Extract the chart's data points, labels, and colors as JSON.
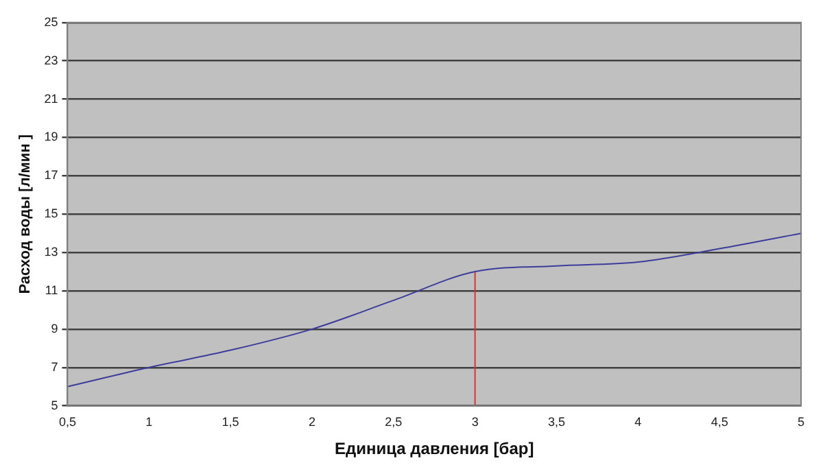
{
  "chart_data": {
    "type": "line",
    "xlabel": "Единица давления [бар]",
    "ylabel": "Расход воды [л/мин ]",
    "xlim": [
      0.5,
      5
    ],
    "xticks": [
      {
        "value": 0.5,
        "label": "0,5"
      },
      1,
      {
        "value": 1.5,
        "label": "1,5"
      },
      2,
      {
        "value": 2.5,
        "label": "2,5"
      },
      3,
      {
        "value": 3.5,
        "label": "3,5"
      },
      4,
      {
        "value": 4.5,
        "label": "4,5"
      },
      5
    ],
    "ylim": [
      5,
      25
    ],
    "yticks": [
      5,
      7,
      9,
      11,
      13,
      15,
      17,
      19,
      21,
      23,
      25
    ],
    "grid": "y",
    "legend": false,
    "marker": "none",
    "series": [
      {
        "color": "#3c3c9c",
        "x": [
          0.5,
          1,
          1.5,
          2,
          2.5,
          3,
          3.5,
          4,
          4.5,
          5
        ],
        "values": [
          6,
          7,
          7.9,
          9,
          10.5,
          12,
          12.3,
          12.5,
          13.2,
          14
        ]
      },
      {
        "color": "#e03030",
        "x": [
          3,
          3
        ],
        "values": [
          5,
          12
        ]
      }
    ]
  }
}
